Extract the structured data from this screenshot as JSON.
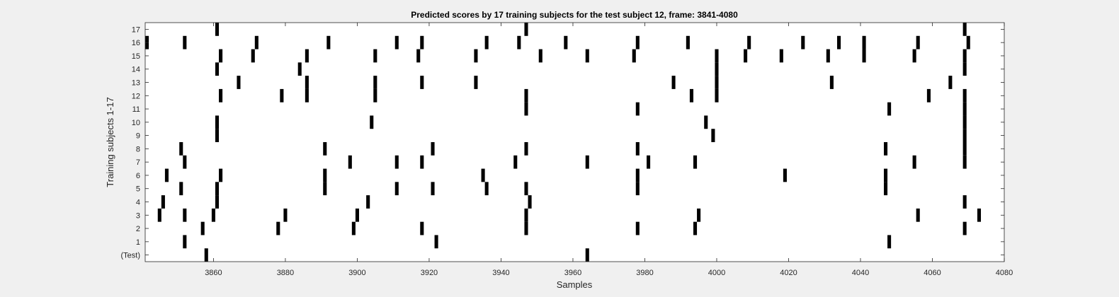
{
  "chart_data": {
    "type": "scatter",
    "title": "Predicted scores by 17 training subjects for the test subject 12, frame: 3841-4080",
    "xlabel": "Samples",
    "ylabel": "Training subjects 1-17",
    "xlim": [
      3841,
      4080
    ],
    "x_ticks": [
      3860,
      3880,
      3900,
      3920,
      3940,
      3960,
      3980,
      4000,
      4020,
      4040,
      4060,
      4080
    ],
    "categories": [
      "(Test)",
      "1",
      "2",
      "3",
      "4",
      "5",
      "6",
      "7",
      "8",
      "9",
      "10",
      "11",
      "12",
      "13",
      "14",
      "15",
      "16",
      "17"
    ],
    "grid": false,
    "mark_color": "#000000",
    "series": [
      {
        "category": "(Test)",
        "x": [
          3858,
          3964
        ]
      },
      {
        "category": "1",
        "x": [
          3852,
          3922,
          4048
        ]
      },
      {
        "category": "2",
        "x": [
          3857,
          3878,
          3899,
          3918,
          3947,
          3978,
          3994,
          4069
        ]
      },
      {
        "category": "3",
        "x": [
          3845,
          3852,
          3860,
          3880,
          3900,
          3947,
          3995,
          4056,
          4073
        ]
      },
      {
        "category": "4",
        "x": [
          3846,
          3861,
          3903,
          3948,
          4069
        ]
      },
      {
        "category": "5",
        "x": [
          3851,
          3861,
          3891,
          3911,
          3921,
          3936,
          3947,
          3978,
          4047
        ]
      },
      {
        "category": "6",
        "x": [
          3847,
          3862,
          3891,
          3935,
          3978,
          4019,
          4047
        ]
      },
      {
        "category": "7",
        "x": [
          3852,
          3898,
          3911,
          3918,
          3944,
          3964,
          3981,
          3994,
          4055,
          4069
        ]
      },
      {
        "category": "8",
        "x": [
          3851,
          3891,
          3921,
          3947,
          3978,
          4047,
          4069
        ]
      },
      {
        "category": "9",
        "x": [
          3861,
          3999,
          4069
        ]
      },
      {
        "category": "10",
        "x": [
          3861,
          3904,
          3997,
          4069
        ]
      },
      {
        "category": "11",
        "x": [
          3947,
          3978,
          4048,
          4069
        ]
      },
      {
        "category": "12",
        "x": [
          3862,
          3879,
          3886,
          3905,
          3947,
          3993,
          4000,
          4059,
          4069
        ]
      },
      {
        "category": "13",
        "x": [
          3867,
          3886,
          3905,
          3918,
          3933,
          3988,
          4000,
          4032,
          4065
        ]
      },
      {
        "category": "14",
        "x": [
          3861,
          3884,
          4000,
          4069
        ]
      },
      {
        "category": "15",
        "x": [
          3862,
          3871,
          3886,
          3905,
          3917,
          3933,
          3951,
          3964,
          3977,
          4000,
          4008,
          4018,
          4031,
          4041,
          4055,
          4069
        ]
      },
      {
        "category": "16",
        "x": [
          3841,
          3852,
          3872,
          3892,
          3911,
          3918,
          3936,
          3945,
          3958,
          3978,
          3992,
          4009,
          4024,
          4034,
          4041,
          4056,
          4070
        ]
      },
      {
        "category": "17",
        "x": [
          3861,
          3947,
          4069
        ]
      }
    ]
  }
}
